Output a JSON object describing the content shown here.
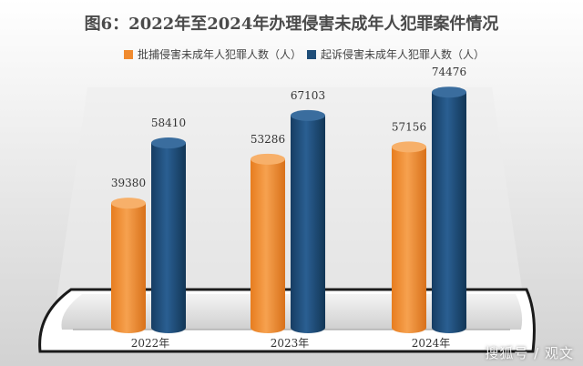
{
  "chart_data": {
    "type": "bar",
    "title": "图6：2022年至2024年办理侵害未成年人犯罪案件情况",
    "categories": [
      "2022年",
      "2023年",
      "2024年"
    ],
    "series": [
      {
        "name": "批捕侵害未成年人犯罪人数（人）",
        "values": [
          39380,
          53286,
          57156
        ],
        "color": "#f08a2e"
      },
      {
        "name": "起诉侵害未成年人犯罪人数（人）",
        "values": [
          58410,
          67103,
          74476
        ],
        "color": "#1f4e79"
      }
    ],
    "xlabel": "",
    "ylabel": "",
    "ylim": [
      0,
      80000
    ],
    "grid": false,
    "legend": "top-center"
  },
  "watermark": "搜狐号 / 观文"
}
